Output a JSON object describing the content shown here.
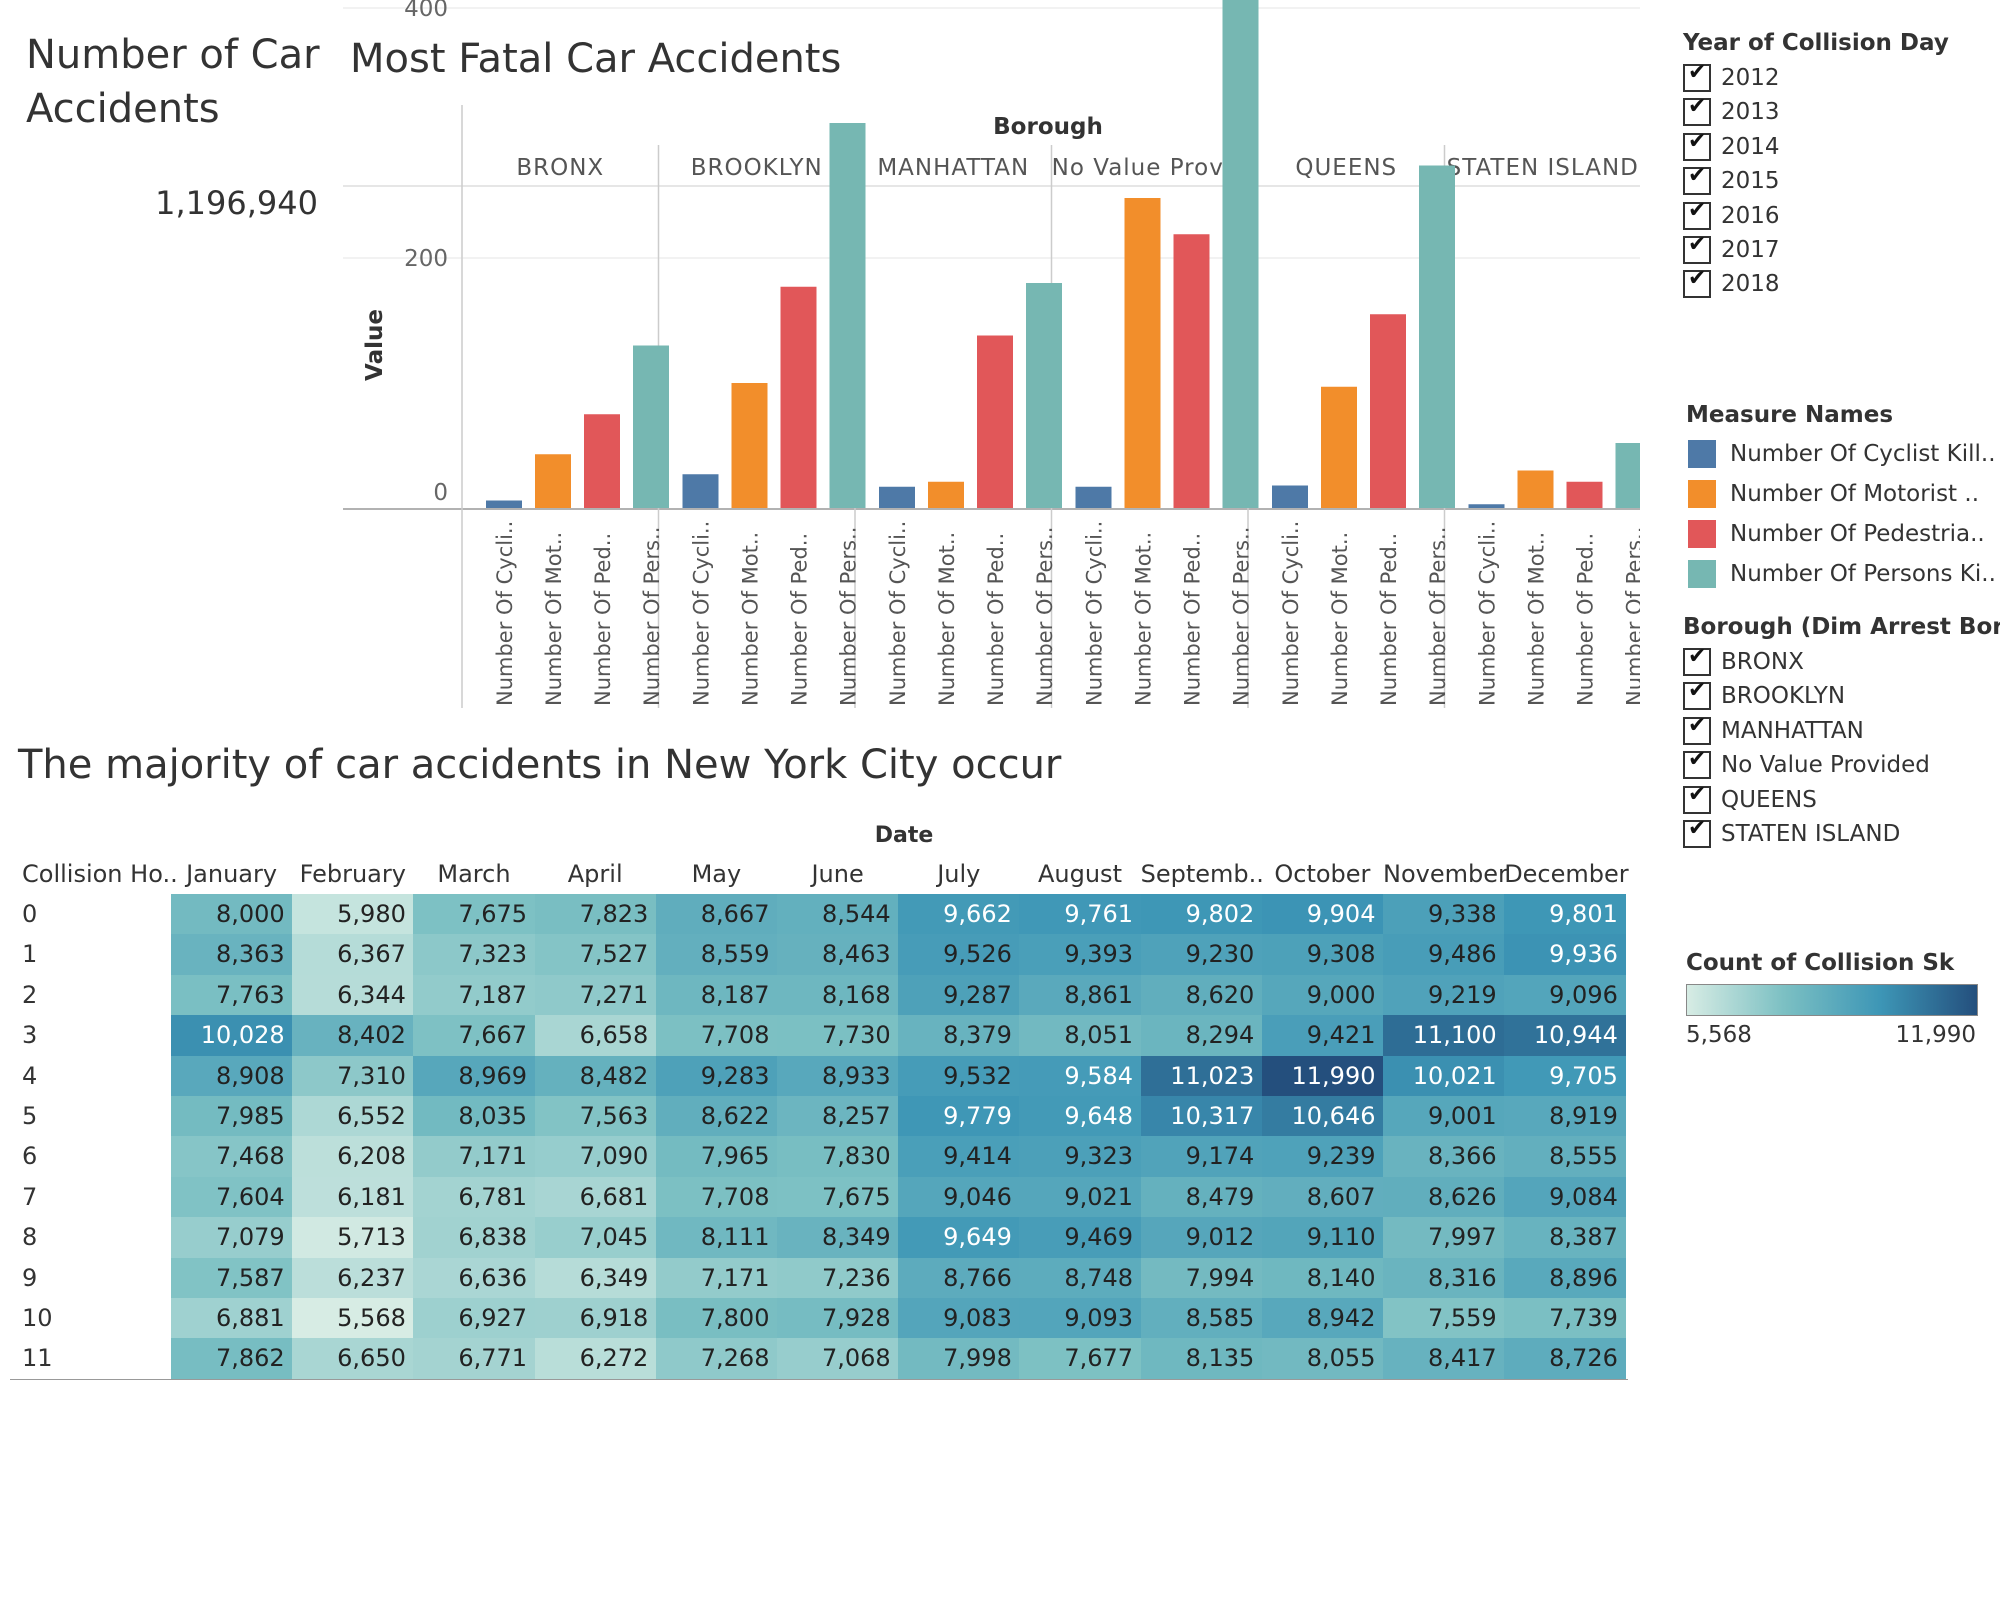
{
  "kpi": {
    "title": "Number of Car Accidents",
    "value": "1,196,940"
  },
  "bar_chart": {
    "title": "Most Fatal Car Accidents",
    "column_header": "Borough",
    "ylabel": "Value",
    "yticks": [
      "0",
      "200",
      "400"
    ],
    "colors": {
      "cyclist": "#4e79a7",
      "motorist": "#f28e2b",
      "pedestrian": "#e15759",
      "persons": "#76b7b2"
    },
    "x_labels": [
      "Number Of Cycli..",
      "Number Of Mot..",
      "Number Of Ped..",
      "Number Of Pers.."
    ]
  },
  "heatmap": {
    "title": "The majority of car accidents in New York City occur",
    "column_header": "Date",
    "row_header": "Collision Ho..",
    "color_low": "#d7ece4",
    "color_high": "#244f7d"
  },
  "chart_data": [
    {
      "type": "bar",
      "title": "Most Fatal Car Accidents",
      "ylabel": "Value",
      "ylim": [
        0,
        500
      ],
      "grid": true,
      "facet": "Borough",
      "panels": [
        "BRONX",
        "BROOKLYN",
        "MANHATTAN",
        "No Value Provi..",
        "QUEENS",
        "STATEN ISLAND"
      ],
      "series": [
        {
          "name": "Number Of Cyclist Kill..",
          "values": [
            6,
            27,
            17,
            17,
            18,
            3
          ]
        },
        {
          "name": "Number Of Motorist ..",
          "values": [
            43,
            100,
            21,
            248,
            97,
            30
          ]
        },
        {
          "name": "Number Of Pedestria..",
          "values": [
            75,
            177,
            138,
            219,
            155,
            21
          ]
        },
        {
          "name": "Number Of Persons Ki..",
          "values": [
            130,
            308,
            180,
            488,
            274,
            52
          ]
        }
      ]
    },
    {
      "type": "heatmap",
      "title": "The majority of car accidents in New York City occur",
      "xlabel": "Date",
      "ylabel": "Collision Ho..",
      "columns": [
        "January",
        "February",
        "March",
        "April",
        "May",
        "June",
        "July",
        "August",
        "Septemb..",
        "October",
        "November",
        "December"
      ],
      "rows": [
        "0",
        "1",
        "2",
        "3",
        "4",
        "5",
        "6",
        "7",
        "8",
        "9",
        "10",
        "11"
      ],
      "values": [
        [
          8000,
          5980,
          7675,
          7823,
          8667,
          8544,
          9662,
          9761,
          9802,
          9904,
          9338,
          9801
        ],
        [
          8363,
          6367,
          7323,
          7527,
          8559,
          8463,
          9526,
          9393,
          9230,
          9308,
          9486,
          9936
        ],
        [
          7763,
          6344,
          7187,
          7271,
          8187,
          8168,
          9287,
          8861,
          8620,
          9000,
          9219,
          9096
        ],
        [
          10028,
          8402,
          7667,
          6658,
          7708,
          7730,
          8379,
          8051,
          8294,
          9421,
          11100,
          10944
        ],
        [
          8908,
          7310,
          8969,
          8482,
          9283,
          8933,
          9532,
          9584,
          11023,
          11990,
          10021,
          9705
        ],
        [
          7985,
          6552,
          8035,
          7563,
          8622,
          8257,
          9779,
          9648,
          10317,
          10646,
          9001,
          8919
        ],
        [
          7468,
          6208,
          7171,
          7090,
          7965,
          7830,
          9414,
          9323,
          9174,
          9239,
          8366,
          8555
        ],
        [
          7604,
          6181,
          6781,
          6681,
          7708,
          7675,
          9046,
          9021,
          8479,
          8607,
          8626,
          9084
        ],
        [
          7079,
          5713,
          6838,
          7045,
          8111,
          8349,
          9649,
          9469,
          9012,
          9110,
          7997,
          8387
        ],
        [
          7587,
          6237,
          6636,
          6349,
          7171,
          7236,
          8766,
          8748,
          7994,
          8140,
          8316,
          8896
        ],
        [
          6881,
          5568,
          6927,
          6918,
          7800,
          7928,
          9083,
          9093,
          8585,
          8942,
          7559,
          7739
        ],
        [
          7862,
          6650,
          6771,
          6272,
          7268,
          7068,
          7998,
          7677,
          8135,
          8055,
          8417,
          8726
        ]
      ],
      "color_range": [
        5568,
        11990
      ]
    }
  ],
  "legends": {
    "year": {
      "title": "Year of Collision Day",
      "items": [
        "2012",
        "2013",
        "2014",
        "2015",
        "2016",
        "2017",
        "2018"
      ]
    },
    "measures": {
      "title": "Measure Names",
      "items": [
        {
          "label": "Number Of Cyclist Kill..",
          "color": "#4e79a7"
        },
        {
          "label": "Number Of Motorist ..",
          "color": "#f28e2b"
        },
        {
          "label": "Number Of Pedestria..",
          "color": "#e15759"
        },
        {
          "label": "Number Of Persons Ki..",
          "color": "#76b7b2"
        }
      ]
    },
    "borough": {
      "title": "Borough (Dim Arrest Bor..",
      "items": [
        "BRONX",
        "BROOKLYN",
        "MANHATTAN",
        "No Value Provided",
        "QUEENS",
        "STATEN ISLAND"
      ]
    },
    "count": {
      "title": "Count of Collision Sk",
      "min_label": "5,568",
      "max_label": "11,990"
    }
  }
}
